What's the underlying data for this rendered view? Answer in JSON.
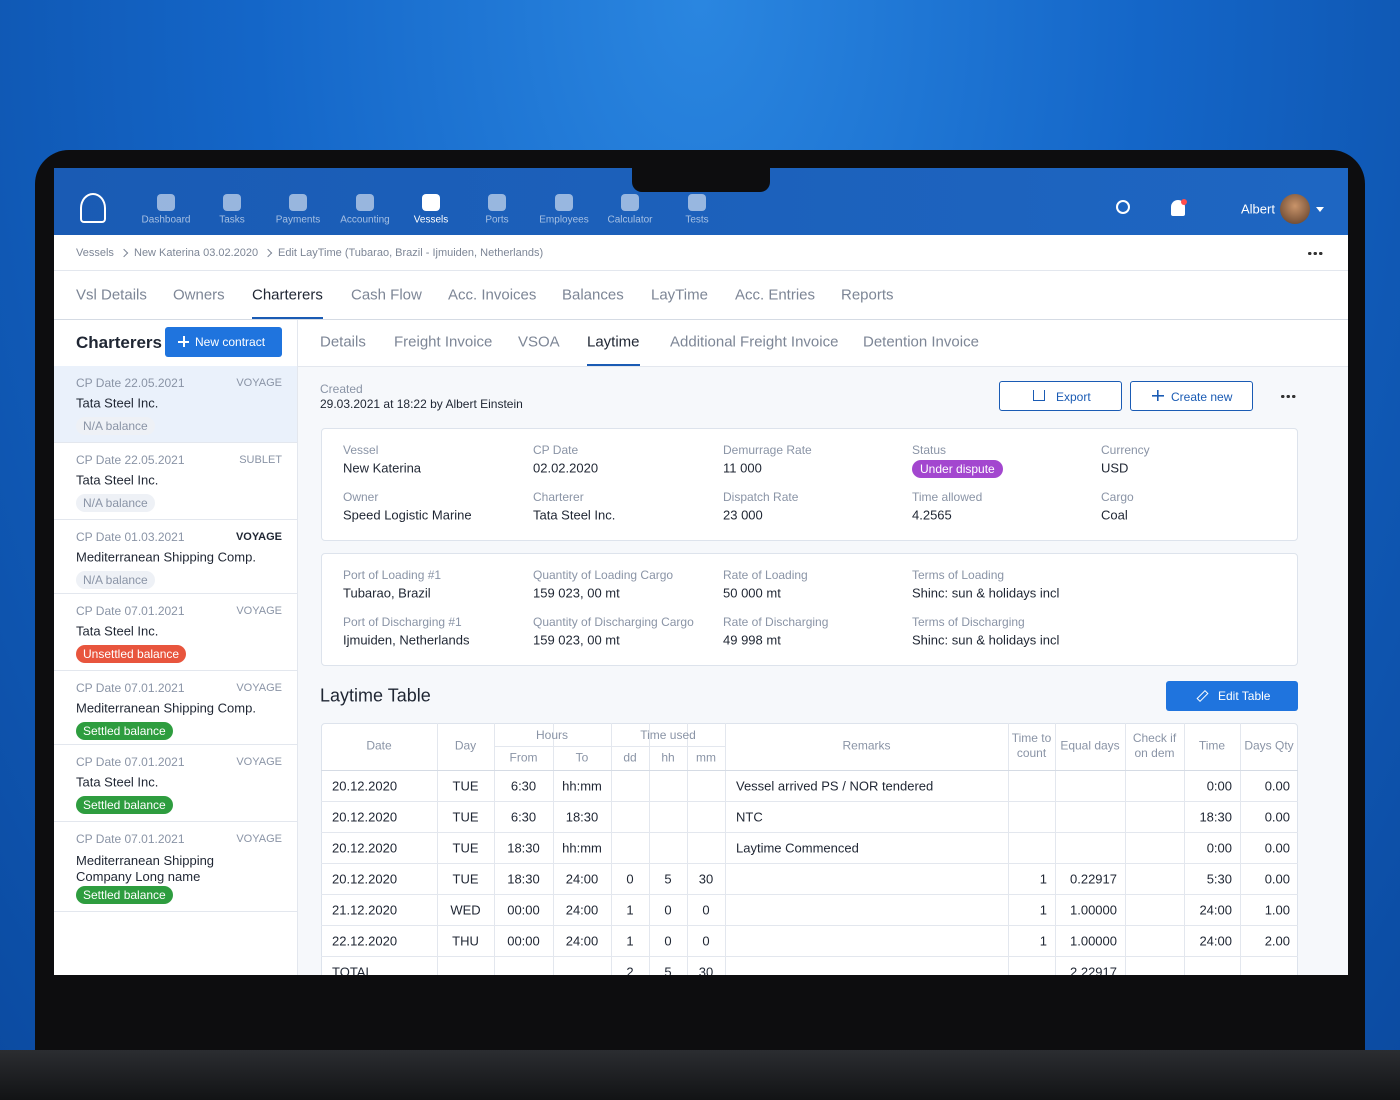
{
  "nav": {
    "items": [
      "Dashboard",
      "Tasks",
      "Payments",
      "Accounting",
      "Vessels",
      "Ports",
      "Employees",
      "Calculator",
      "Tests"
    ],
    "user": "Albert"
  },
  "breadcrumb": [
    "Vessels",
    "New Katerina 03.02.2020",
    "Edit LayTime (Tubarao, Brazil - Ijmuiden, Netherlands)"
  ],
  "main_tabs": [
    "Vsl Details",
    "Owners",
    "Charterers",
    "Cash Flow",
    "Acc. Invoices",
    "Balances",
    "LayTime",
    "Acc. Entries",
    "Reports"
  ],
  "sidebar": {
    "title": "Charterers",
    "button": "New contract",
    "items": [
      {
        "date": "CP Date 22.05.2021",
        "type": "VOYAGE",
        "name": "Tata Steel Inc.",
        "balance": "N/A balance",
        "balance_bg": "#eef1f6",
        "balance_fg": "#8a94a6"
      },
      {
        "date": "CP Date 22.05.2021",
        "type": "SUBLET",
        "name": "Tata Steel Inc.",
        "balance": "N/A balance",
        "balance_bg": "#eef1f6",
        "balance_fg": "#8a94a6"
      },
      {
        "date": "CP Date 01.03.2021",
        "type": "VOYAGE",
        "name": "Mediterranean Shipping Comp.",
        "balance": "N/A balance",
        "balance_bg": "#eef1f6",
        "balance_fg": "#8a94a6"
      },
      {
        "date": "CP Date 07.01.2021",
        "type": "VOYAGE",
        "name": "Tata Steel Inc.",
        "balance": "Unsettled balance",
        "balance_bg": "#e8553d",
        "balance_fg": "#ffffff"
      },
      {
        "date": "CP Date 07.01.2021",
        "type": "VOYAGE",
        "name": "Mediterranean Shipping Comp.",
        "balance": "Settled balance",
        "balance_bg": "#2e9d3f",
        "balance_fg": "#ffffff"
      },
      {
        "date": "CP Date 07.01.2021",
        "type": "VOYAGE",
        "name": "Tata Steel Inc.",
        "balance": "Settled balance",
        "balance_bg": "#2e9d3f",
        "balance_fg": "#ffffff"
      },
      {
        "date": "CP Date 07.01.2021",
        "type": "VOYAGE",
        "name": "Mediterranean Shipping Company Long name",
        "balance": "Settled balance",
        "balance_bg": "#2e9d3f",
        "balance_fg": "#ffffff"
      }
    ]
  },
  "sub_tabs": [
    "Details",
    "Freight Invoice",
    "VSOA",
    "Laytime",
    "Additional Freight Invoice",
    "Detention Invoice"
  ],
  "created": {
    "label": "Created",
    "value": "29.03.2021 at 18:22 by Albert Einstein"
  },
  "actions": [
    "Export",
    "Create new"
  ],
  "summary": [
    {
      "label": "Vessel",
      "value": "New Katerina"
    },
    {
      "label": "CP Date",
      "value": "02.02.2020"
    },
    {
      "label": "Demurrage Rate",
      "value": "11 000"
    },
    {
      "label": "Status",
      "value": "Under dispute"
    },
    {
      "label": "Currency",
      "value": "USD"
    },
    {
      "label": "Owner",
      "value": "Speed Logistic Marine"
    },
    {
      "label": "Charterer",
      "value": "Tata Steel Inc."
    },
    {
      "label": "Dispatch Rate",
      "value": "23 000"
    },
    {
      "label": "Time allowed",
      "value": "4.2565"
    },
    {
      "label": "Cargo",
      "value": "Coal"
    }
  ],
  "cargo": [
    {
      "label": "Port of Loading #1",
      "value": "Tubarao, Brazil"
    },
    {
      "label": "Quantity of Loading Cargo",
      "value": "159 023, 00 mt"
    },
    {
      "label": "Rate of Loading",
      "value": "50 000 mt"
    },
    {
      "label": "Terms of Loading",
      "value": "Shinc: sun & holidays incl"
    },
    {
      "label": "Port of Discharging #1",
      "value": "Ijmuiden, Netherlands"
    },
    {
      "label": "Quantity of Discharging Cargo",
      "value": "159 023, 00 mt"
    },
    {
      "label": "Rate of Discharging",
      "value": "49 998 mt"
    },
    {
      "label": "Terms of Discharging",
      "value": "Shinc: sun & holidays incl"
    }
  ],
  "laytime_table": {
    "title": "Laytime Table",
    "button": "Edit Table",
    "groups": [
      "Hours",
      "Time used"
    ],
    "columns": [
      "Date",
      "Day",
      "From",
      "To",
      "dd",
      "hh",
      "mm",
      "Remarks",
      "Time to count",
      "Equal days",
      "Check if on dem",
      "Time",
      "Days Qty"
    ],
    "rows": [
      [
        "20.12.2020",
        "TUE",
        "6:30",
        "hh:mm",
        null,
        null,
        null,
        "Vessel arrived PS / NOR tendered",
        null,
        null,
        null,
        "0:00",
        "0.00"
      ],
      [
        "20.12.2020",
        "TUE",
        "6:30",
        "18:30",
        null,
        null,
        null,
        "NTC",
        null,
        null,
        null,
        "18:30",
        "0.00"
      ],
      [
        "20.12.2020",
        "TUE",
        "18:30",
        "hh:mm",
        null,
        null,
        null,
        "Laytime Commenced",
        null,
        null,
        null,
        "0:00",
        "0.00"
      ],
      [
        "20.12.2020",
        "TUE",
        "18:30",
        "24:00",
        "0",
        "5",
        "30",
        null,
        "1",
        "0.22917",
        null,
        "5:30",
        "0.00"
      ],
      [
        "21.12.2020",
        "WED",
        "00:00",
        "24:00",
        "1",
        "0",
        "0",
        null,
        "1",
        "1.00000",
        null,
        "24:00",
        "1.00"
      ],
      [
        "22.12.2020",
        "THU",
        "00:00",
        "24:00",
        "1",
        "0",
        "0",
        null,
        "1",
        "1.00000",
        null,
        "24:00",
        "2.00"
      ]
    ],
    "total": [
      "TOTAL",
      null,
      null,
      null,
      "2",
      "5",
      "30",
      null,
      null,
      "2.22917",
      null,
      null,
      null
    ]
  }
}
